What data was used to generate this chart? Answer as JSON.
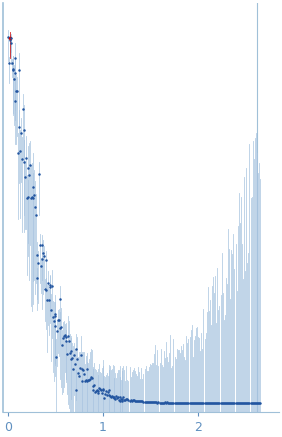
{
  "title": "",
  "xlabel_text": "",
  "ylabel_text": "",
  "xlim": [
    -0.05,
    2.85
  ],
  "ylim": [
    -0.0005,
    0.022
  ],
  "point_color": "#2255a0",
  "error_color": "#a8c4e0",
  "outlier_color": "#cc0000",
  "border_color": "#a0c0d8",
  "background": "#ffffff",
  "xticks": [
    0,
    1,
    2
  ],
  "tick_color": "#6090c0",
  "axes_color": "#a0c0d8",
  "right_line_x": 2.62
}
